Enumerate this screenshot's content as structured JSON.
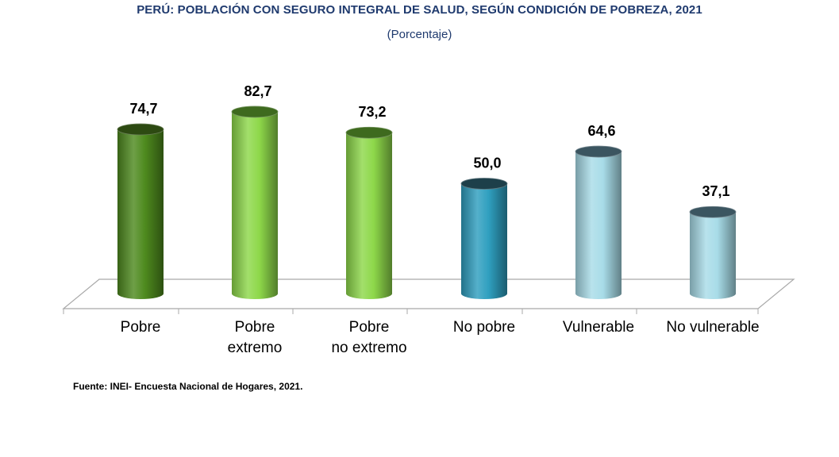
{
  "title": "PERÚ: POBLACIÓN CON SEGURO INTEGRAL DE SALUD, SEGÚN CONDICIÓN DE POBREZA, 2021",
  "subtitle": "(Porcentaje)",
  "source": "Fuente: INEI- Encuesta Nacional de Hogares, 2021.",
  "chart_data": {
    "type": "bar",
    "style": "3d-cylinder",
    "categories": [
      [
        "Pobre"
      ],
      [
        "Pobre",
        "extremo"
      ],
      [
        "Pobre",
        "no extremo"
      ],
      [
        "No pobre"
      ],
      [
        "Vulnerable"
      ],
      [
        "No vulnerable"
      ]
    ],
    "values": [
      74.7,
      82.7,
      73.2,
      50.0,
      64.6,
      37.1
    ],
    "data_labels": [
      "74,7",
      "82,7",
      "73,2",
      "50,0",
      "64,6",
      "37,1"
    ],
    "colors": [
      "#4e8a1e",
      "#8ed84a",
      "#8ed84a",
      "#2f9fbf",
      "#a8dce8",
      "#a8dce8"
    ],
    "top_colors": [
      "#2d4a12",
      "#3e6a1e",
      "#3e6a1e",
      "#1d3f4a",
      "#3b5560",
      "#3b5560"
    ],
    "ylim": [
      0,
      100
    ],
    "grid": false,
    "legend": "none"
  }
}
